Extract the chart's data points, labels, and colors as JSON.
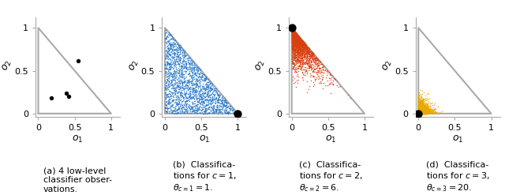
{
  "triangle_color": "#aaaaaa",
  "triangle_linewidth": 1.5,
  "obs_points_a": [
    [
      0.55,
      0.62
    ],
    [
      0.18,
      0.18
    ],
    [
      0.38,
      0.24
    ],
    [
      0.42,
      0.2
    ]
  ],
  "obs_color_a": "black",
  "obs_size_a": 15,
  "n_scatter": 2000,
  "blue_color": "#2878C8",
  "blue_dot": [
    1.0,
    0.0
  ],
  "orange_color": "#D84010",
  "orange_dot": [
    0.0,
    1.0
  ],
  "yellow_color": "#E8A800",
  "yellow_dot": [
    0.0,
    0.0
  ],
  "dot_size": 55,
  "dot_color": "black",
  "xlabel": "$o_1$",
  "ylabel": "$o_2$",
  "xlim": [
    -0.04,
    1.12
  ],
  "ylim": [
    -0.04,
    1.12
  ],
  "xticks": [
    0,
    0.5,
    1
  ],
  "yticks": [
    0,
    0.5,
    1
  ],
  "tick_labels": [
    "0",
    "0.5",
    "1"
  ],
  "captions": [
    "(a) 4 low-level\nclassifier obser-\nvations.",
    "(b)  Classifica-\ntions for $c=1$,\n$\\theta_{c=1}=1$.",
    "(c)  Classifica-\ntions for $c=2$,\n$\\theta_{c=2}=6$.",
    "(d)  Classifica-\ntions for $c=3$,\n$\\theta_{c=3}=20$."
  ],
  "caption_fontsize": 8.0,
  "figsize": [
    6.4,
    2.47
  ],
  "dpi": 100,
  "axis_spine_color": "#aaaaaa",
  "tick_fontsize": 8,
  "label_fontsize": 9
}
